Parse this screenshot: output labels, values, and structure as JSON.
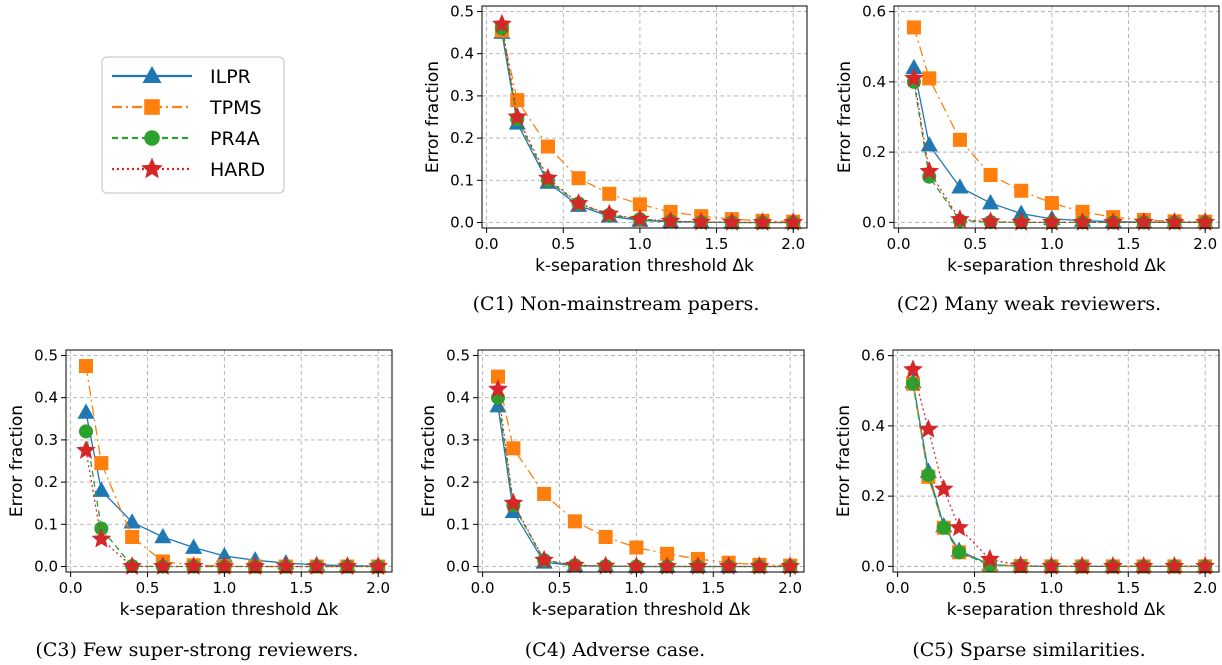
{
  "legend": [
    {
      "name": "ILPR",
      "color": "#1f77b4",
      "marker": "triangle",
      "dash": ""
    },
    {
      "name": "TPMS",
      "color": "#ff7f0e",
      "marker": "square",
      "dash": "10,4,2,4"
    },
    {
      "name": "PR4A",
      "color": "#2ca02c",
      "marker": "circle",
      "dash": "6,4"
    },
    {
      "name": "HARD",
      "color": "#d62728",
      "marker": "star",
      "dash": "2,3"
    }
  ],
  "chart_data": [
    {
      "type": "line",
      "caption": "(C1) Non-mainstream papers.",
      "xlabel": "k-separation threshold Δk",
      "ylabel": "Error fraction",
      "xlim": [
        -0.03,
        2.09
      ],
      "ylim": [
        -0.013,
        0.513
      ],
      "xticks": [
        "0.0",
        "0.5",
        "1.0",
        "1.5",
        "2.0"
      ],
      "yticks": [
        "0.0",
        "0.1",
        "0.2",
        "0.3",
        "0.4",
        "0.5"
      ],
      "x": [
        0.1,
        0.2,
        0.4,
        0.6,
        0.8,
        1.0,
        1.2,
        1.4,
        1.6,
        1.8,
        2.0
      ],
      "series": [
        {
          "name": "ILPR",
          "values": [
            0.45,
            0.235,
            0.095,
            0.04,
            0.015,
            0.005,
            0.002,
            0.001,
            0.0,
            0.0,
            0.0
          ]
        },
        {
          "name": "TPMS",
          "values": [
            0.455,
            0.29,
            0.18,
            0.105,
            0.068,
            0.043,
            0.025,
            0.015,
            0.008,
            0.004,
            0.002
          ]
        },
        {
          "name": "PR4A",
          "values": [
            0.46,
            0.245,
            0.1,
            0.045,
            0.018,
            0.008,
            0.003,
            0.001,
            0.0,
            0.0,
            0.0
          ]
        },
        {
          "name": "HARD",
          "values": [
            0.47,
            0.25,
            0.105,
            0.045,
            0.02,
            0.008,
            0.003,
            0.001,
            0.0,
            0.0,
            0.0
          ]
        }
      ]
    },
    {
      "type": "line",
      "caption": "(C2) Many weak reviewers.",
      "xlabel": "k-separation threshold Δk",
      "ylabel": "Error fraction",
      "xlim": [
        -0.03,
        2.09
      ],
      "ylim": [
        -0.016,
        0.616
      ],
      "xticks": [
        "0.0",
        "0.5",
        "1.0",
        "1.5",
        "2.0"
      ],
      "yticks": [
        "0.0",
        "0.2",
        "0.4",
        "0.6"
      ],
      "x": [
        0.1,
        0.2,
        0.4,
        0.6,
        0.8,
        1.0,
        1.2,
        1.4,
        1.6,
        1.8,
        2.0
      ],
      "series": [
        {
          "name": "ILPR",
          "values": [
            0.44,
            0.22,
            0.1,
            0.055,
            0.025,
            0.01,
            0.005,
            0.002,
            0.001,
            0.0,
            0.0
          ]
        },
        {
          "name": "TPMS",
          "values": [
            0.555,
            0.41,
            0.235,
            0.135,
            0.09,
            0.055,
            0.03,
            0.015,
            0.007,
            0.003,
            0.002
          ]
        },
        {
          "name": "PR4A",
          "values": [
            0.4,
            0.13,
            0.005,
            0.001,
            0.0,
            0.0,
            0.0,
            0.0,
            0.0,
            0.0,
            0.0
          ]
        },
        {
          "name": "HARD",
          "values": [
            0.41,
            0.145,
            0.008,
            0.002,
            0.0,
            0.0,
            0.0,
            0.0,
            0.0,
            0.0,
            0.0
          ]
        }
      ]
    },
    {
      "type": "line",
      "caption": "(C3) Few super-strong reviewers.",
      "xlabel": "k-separation threshold Δk",
      "ylabel": "Error fraction",
      "xlim": [
        -0.03,
        2.09
      ],
      "ylim": [
        -0.013,
        0.513
      ],
      "xticks": [
        "0.0",
        "0.5",
        "1.0",
        "1.5",
        "2.0"
      ],
      "yticks": [
        "0.0",
        "0.1",
        "0.2",
        "0.3",
        "0.4",
        "0.5"
      ],
      "x": [
        0.1,
        0.2,
        0.4,
        0.6,
        0.8,
        1.0,
        1.2,
        1.4,
        1.6,
        1.8,
        2.0
      ],
      "series": [
        {
          "name": "ILPR",
          "values": [
            0.365,
            0.18,
            0.105,
            0.07,
            0.045,
            0.025,
            0.015,
            0.008,
            0.004,
            0.002,
            0.001
          ]
        },
        {
          "name": "TPMS",
          "values": [
            0.475,
            0.245,
            0.07,
            0.012,
            0.003,
            0.001,
            0.0,
            0.0,
            0.0,
            0.0,
            0.0
          ]
        },
        {
          "name": "PR4A",
          "values": [
            0.32,
            0.09,
            0.001,
            0.0,
            0.0,
            0.0,
            0.0,
            0.0,
            0.0,
            0.0,
            0.0
          ]
        },
        {
          "name": "HARD",
          "values": [
            0.275,
            0.065,
            0.0,
            0.0,
            0.0,
            0.0,
            0.0,
            0.0,
            0.0,
            0.0,
            0.0
          ]
        }
      ]
    },
    {
      "type": "line",
      "caption": "(C4) Adverse case.",
      "xlabel": "k-separation threshold Δk",
      "ylabel": "Error fraction",
      "xlim": [
        -0.03,
        2.09
      ],
      "ylim": [
        -0.013,
        0.513
      ],
      "xticks": [
        "0.0",
        "0.5",
        "1.0",
        "1.5",
        "2.0"
      ],
      "yticks": [
        "0.0",
        "0.1",
        "0.2",
        "0.3",
        "0.4",
        "0.5"
      ],
      "x": [
        0.1,
        0.2,
        0.4,
        0.6,
        0.8,
        1.0,
        1.2,
        1.4,
        1.6,
        1.8,
        2.0
      ],
      "series": [
        {
          "name": "ILPR",
          "values": [
            0.38,
            0.13,
            0.01,
            0.002,
            0.001,
            0.0,
            0.0,
            0.0,
            0.0,
            0.0,
            0.0
          ]
        },
        {
          "name": "TPMS",
          "values": [
            0.45,
            0.28,
            0.172,
            0.107,
            0.07,
            0.045,
            0.03,
            0.018,
            0.009,
            0.004,
            0.002
          ]
        },
        {
          "name": "PR4A",
          "values": [
            0.4,
            0.145,
            0.015,
            0.003,
            0.001,
            0.0,
            0.0,
            0.0,
            0.0,
            0.0,
            0.0
          ]
        },
        {
          "name": "HARD",
          "values": [
            0.42,
            0.15,
            0.015,
            0.003,
            0.001,
            0.0,
            0.0,
            0.0,
            0.0,
            0.0,
            0.0
          ]
        }
      ]
    },
    {
      "type": "line",
      "caption": "(C5) Sparse similarities.",
      "xlabel": "k-separation threshold Δk",
      "ylabel": "Error fraction",
      "xlim": [
        -0.03,
        2.09
      ],
      "ylim": [
        -0.016,
        0.616
      ],
      "xticks": [
        "0.0",
        "0.5",
        "1.0",
        "1.5",
        "2.0"
      ],
      "yticks": [
        "0.0",
        "0.2",
        "0.4",
        "0.6"
      ],
      "x": [
        0.1,
        0.2,
        0.3,
        0.4,
        0.6,
        0.8,
        1.0,
        1.2,
        1.4,
        1.6,
        1.8,
        2.0
      ],
      "series": [
        {
          "name": "ILPR",
          "values": [
            0.525,
            0.27,
            0.115,
            0.045,
            0.005,
            0.001,
            0.0,
            0.0,
            0.0,
            0.0,
            0.0,
            0.0
          ]
        },
        {
          "name": "TPMS",
          "values": [
            0.52,
            0.255,
            0.11,
            0.04,
            0.004,
            0.001,
            0.0,
            0.0,
            0.0,
            0.0,
            0.0,
            0.0
          ]
        },
        {
          "name": "PR4A",
          "values": [
            0.52,
            0.26,
            0.11,
            0.04,
            0.004,
            0.001,
            0.0,
            0.0,
            0.0,
            0.0,
            0.0,
            0.0
          ]
        },
        {
          "name": "HARD",
          "values": [
            0.56,
            0.39,
            0.22,
            0.11,
            0.02,
            0.002,
            0.0,
            0.0,
            0.0,
            0.0,
            0.0,
            0.0
          ]
        }
      ]
    }
  ]
}
